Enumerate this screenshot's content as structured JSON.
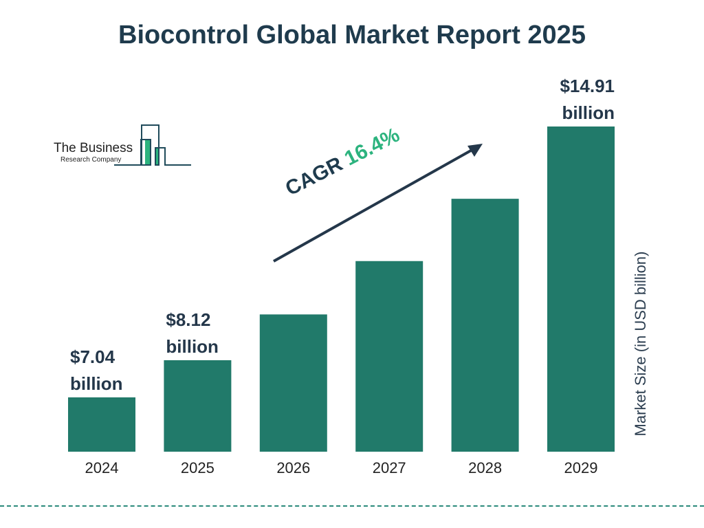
{
  "chart_data": {
    "type": "bar",
    "title": "Biocontrol Global Market Report 2025",
    "ylabel": "Market Size (in USD billion)",
    "categories": [
      "2024",
      "2025",
      "2026",
      "2027",
      "2028",
      "2029"
    ],
    "values": [
      7.04,
      8.12,
      9.45,
      11.0,
      12.81,
      14.91
    ],
    "value_labels": [
      [
        "$7.04",
        "billion"
      ],
      [
        "$8.12",
        "billion"
      ],
      null,
      null,
      null,
      [
        "$14.91",
        "billion"
      ]
    ],
    "ylim": [
      5.46,
      14.91
    ],
    "grid": false,
    "bar_color": "#217a6a",
    "annotation": {
      "label": "CAGR",
      "value": "16.4%",
      "value_color": "#2cb37e"
    }
  },
  "logo": {
    "line1": "The Business",
    "line2": "Research Company"
  }
}
